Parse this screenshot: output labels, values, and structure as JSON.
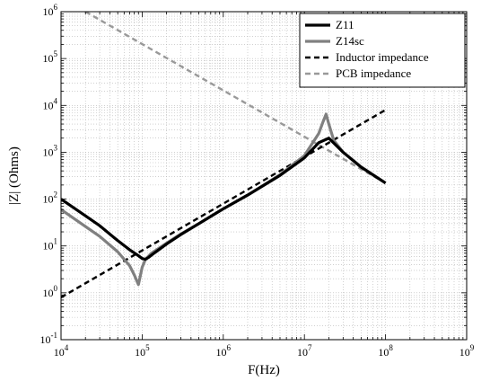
{
  "chart_data": {
    "type": "line",
    "xlabel": "F(Hz)",
    "ylabel": "|Z| (Ohms)",
    "xscale": "log",
    "yscale": "log",
    "xlim": [
      10000,
      1000000000
    ],
    "ylim": [
      0.1,
      1000000
    ],
    "grid": true,
    "legend_position": "top-right",
    "x_ticks": [
      "10^4",
      "10^5",
      "10^6",
      "10^7",
      "10^8",
      "10^9"
    ],
    "y_ticks": [
      "10^-1",
      "10^0",
      "10^1",
      "10^2",
      "10^3",
      "10^4",
      "10^5",
      "10^6"
    ],
    "series": [
      {
        "name": "Z11",
        "color": "#000000",
        "style": "solid",
        "x": [
          10000,
          20000,
          30000,
          50000,
          70000,
          90000,
          100000,
          110000,
          120000,
          140000,
          200000,
          300000,
          500000,
          1000000,
          2000000,
          5000000,
          10000000,
          15000000,
          20000000,
          30000000,
          50000000,
          100000000
        ],
        "y": [
          100,
          44,
          27,
          13,
          8.3,
          6.2,
          5.4,
          5.2,
          5.7,
          7,
          11,
          17.5,
          30,
          62,
          122,
          320,
          760,
          1600,
          2000,
          1000,
          480,
          220
        ]
      },
      {
        "name": "Z14sc",
        "color": "#808080",
        "style": "solid",
        "x": [
          10000,
          20000,
          30000,
          50000,
          70000,
          80000,
          90000,
          100000,
          110000,
          130000,
          200000,
          300000,
          500000,
          1000000,
          2000000,
          5000000,
          10000000,
          15000000,
          17000000,
          18500000,
          20000000,
          23000000,
          30000000,
          50000000,
          100000000
        ],
        "y": [
          60,
          26,
          16,
          7.5,
          3.8,
          2.4,
          1.5,
          3.5,
          5.2,
          7,
          11.5,
          18,
          30,
          62,
          122,
          330,
          850,
          2500,
          4500,
          6500,
          4000,
          1800,
          1000,
          490,
          220
        ]
      },
      {
        "name": "Inductor impedance",
        "color": "#000000",
        "style": "dashed",
        "x": [
          10000,
          100000000
        ],
        "y": [
          0.8,
          8000
        ]
      },
      {
        "name": "PCB impedance",
        "color": "#999999",
        "style": "dashed",
        "x": [
          20000,
          100000000
        ],
        "y": [
          1000000,
          220
        ]
      }
    ]
  }
}
